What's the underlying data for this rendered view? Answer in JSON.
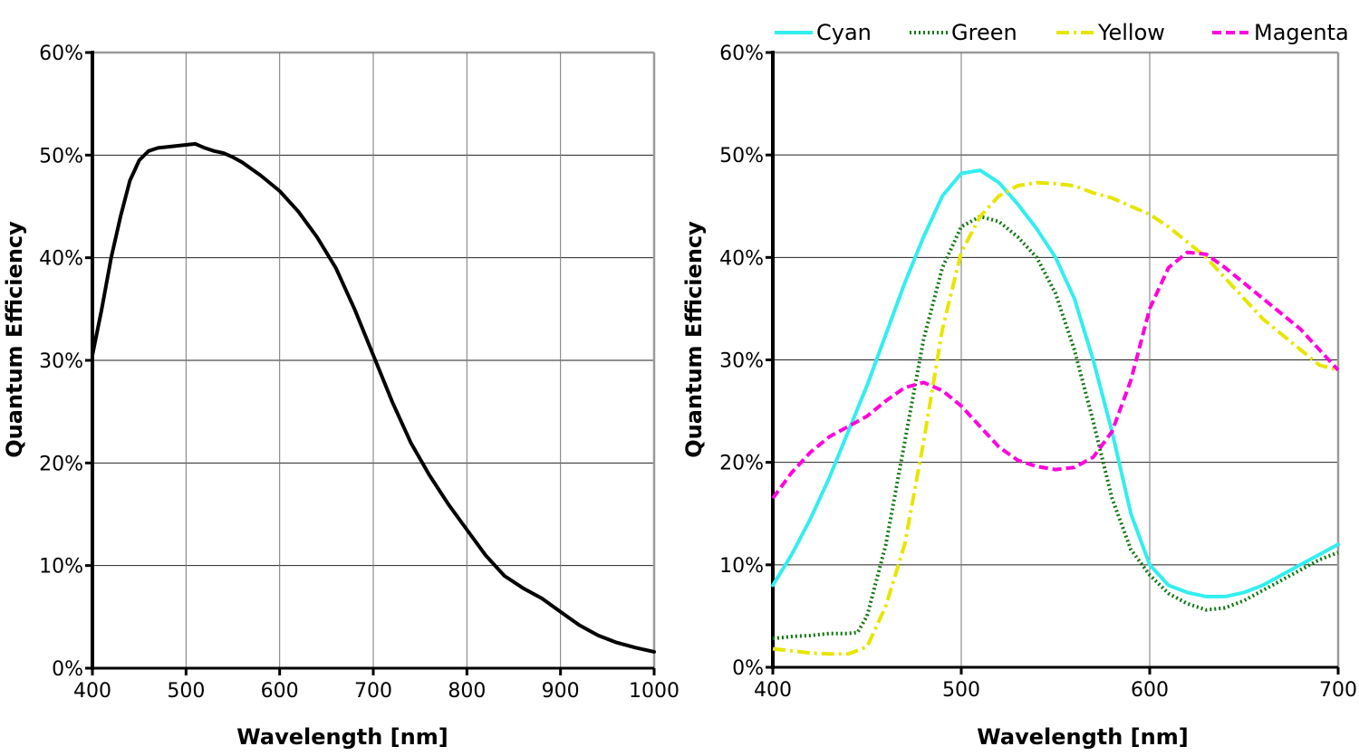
{
  "chart_data": [
    {
      "type": "line",
      "title": "",
      "xlabel": "Wavelength [nm]",
      "ylabel": "Quantum Efficiency",
      "xlim": [
        400,
        1000
      ],
      "ylim": [
        0,
        60
      ],
      "x_ticks": [
        "400",
        "500",
        "600",
        "700",
        "800",
        "900",
        "1000"
      ],
      "y_ticks": [
        "0%",
        "10%",
        "20%",
        "30%",
        "40%",
        "50%",
        "60%"
      ],
      "grid": true,
      "legend": "none",
      "series": [
        {
          "color": "#000000",
          "style": "solid",
          "x": [
            400,
            410,
            420,
            430,
            440,
            450,
            460,
            470,
            480,
            490,
            500,
            510,
            520,
            530,
            540,
            550,
            560,
            580,
            600,
            620,
            640,
            660,
            680,
            700,
            720,
            740,
            760,
            780,
            800,
            820,
            840,
            860,
            880,
            900,
            920,
            940,
            960,
            980,
            1000
          ],
          "values": [
            30.5,
            35,
            40,
            44,
            47.5,
            49.5,
            50.4,
            50.7,
            50.8,
            50.9,
            51,
            51.1,
            50.7,
            50.4,
            50.2,
            49.8,
            49.3,
            48,
            46.5,
            44.5,
            42,
            39,
            35,
            30.5,
            26,
            22,
            18.8,
            16,
            13.5,
            11,
            9,
            7.8,
            6.8,
            5.5,
            4.2,
            3.2,
            2.5,
            2,
            1.6
          ]
        }
      ]
    },
    {
      "type": "line",
      "title": "",
      "xlabel": "Wavelength [nm]",
      "ylabel": "Quantum Efficiency",
      "xlim": [
        400,
        700
      ],
      "ylim": [
        0,
        60
      ],
      "x_ticks": [
        "400",
        "500",
        "600",
        "700"
      ],
      "y_ticks": [
        "0%",
        "10%",
        "20%",
        "30%",
        "40%",
        "50%",
        "60%"
      ],
      "grid": true,
      "legend": "top",
      "series": [
        {
          "name": "Cyan",
          "color": "#33eeee",
          "style": "solid",
          "x": [
            400,
            410,
            420,
            430,
            440,
            450,
            460,
            470,
            480,
            490,
            500,
            510,
            520,
            530,
            540,
            550,
            560,
            570,
            580,
            590,
            600,
            610,
            620,
            630,
            640,
            650,
            660,
            670,
            680,
            690,
            700
          ],
          "values": [
            8,
            11,
            14.5,
            18.5,
            23,
            27.5,
            32.5,
            37.5,
            42,
            46,
            48.2,
            48.5,
            47.3,
            45.2,
            42.8,
            40,
            36,
            30,
            23,
            15,
            10,
            8,
            7.3,
            6.9,
            6.9,
            7.3,
            8,
            9,
            10,
            11,
            12
          ]
        },
        {
          "name": "Green",
          "color": "#117711",
          "style": "dotted",
          "x": [
            400,
            410,
            420,
            430,
            440,
            445,
            450,
            460,
            470,
            480,
            490,
            500,
            510,
            520,
            530,
            540,
            550,
            560,
            570,
            580,
            590,
            600,
            610,
            620,
            630,
            640,
            650,
            660,
            670,
            680,
            690,
            700
          ],
          "values": [
            2.8,
            3,
            3.1,
            3.3,
            3.3,
            3.4,
            5,
            12,
            22,
            32,
            39,
            43,
            44,
            43.5,
            42,
            40,
            36.5,
            31,
            24,
            16.5,
            11.5,
            9,
            7.2,
            6.2,
            5.6,
            5.8,
            6.5,
            7.5,
            8.5,
            9.5,
            10.5,
            11.2
          ]
        },
        {
          "name": "Yellow",
          "color": "#e6e600",
          "style": "dashdot",
          "x": [
            400,
            410,
            420,
            430,
            440,
            450,
            460,
            470,
            480,
            490,
            500,
            510,
            520,
            530,
            540,
            550,
            560,
            570,
            580,
            590,
            600,
            610,
            620,
            630,
            640,
            650,
            660,
            670,
            680,
            690,
            700
          ],
          "values": [
            1.8,
            1.6,
            1.4,
            1.3,
            1.3,
            2,
            6,
            12,
            22,
            33,
            40.5,
            44,
            46,
            47,
            47.3,
            47.2,
            47,
            46.3,
            45.8,
            45,
            44.2,
            43,
            41.5,
            40,
            38,
            36,
            34,
            32.5,
            31,
            29.5,
            29
          ]
        },
        {
          "name": "Magenta",
          "color": "#ff00dd",
          "style": "dashed",
          "x": [
            400,
            410,
            420,
            430,
            440,
            450,
            460,
            470,
            480,
            490,
            500,
            510,
            520,
            530,
            540,
            550,
            560,
            570,
            580,
            590,
            600,
            610,
            620,
            630,
            640,
            650,
            660,
            670,
            680,
            690,
            700
          ],
          "values": [
            16.5,
            19,
            21,
            22.5,
            23.5,
            24.5,
            26,
            27.3,
            27.8,
            27,
            25.5,
            23.5,
            21.5,
            20.2,
            19.6,
            19.3,
            19.5,
            20.5,
            23,
            28,
            35,
            39,
            40.5,
            40.3,
            39,
            37.5,
            36,
            34.5,
            33,
            31,
            29
          ]
        }
      ]
    }
  ]
}
